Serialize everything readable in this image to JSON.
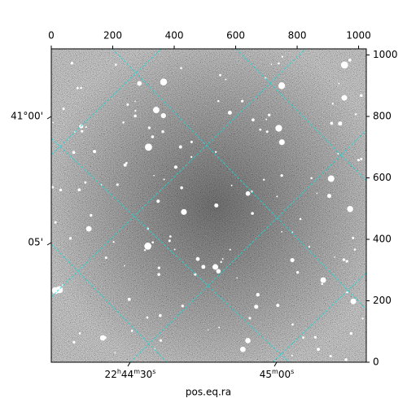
{
  "chart_data": {
    "type": "image",
    "xlabel": "pos.eq.ra",
    "xlim": [
      0,
      1025
    ],
    "ylim": [
      0,
      1020
    ],
    "xticks": [
      0,
      200,
      400,
      600,
      800,
      1000
    ],
    "yticks": [
      0,
      200,
      400,
      600,
      800,
      1000
    ],
    "ra_ticks": [
      {
        "value": 341.125,
        "label": "22h44m30s"
      },
      {
        "value": 341.25,
        "label": "45m00s"
      }
    ],
    "dec_ticks": [
      {
        "value": 41.0,
        "label": "41°00'"
      },
      {
        "value": 41.0833,
        "label": "05'"
      }
    ],
    "grid_color": "#22d3d3"
  }
}
